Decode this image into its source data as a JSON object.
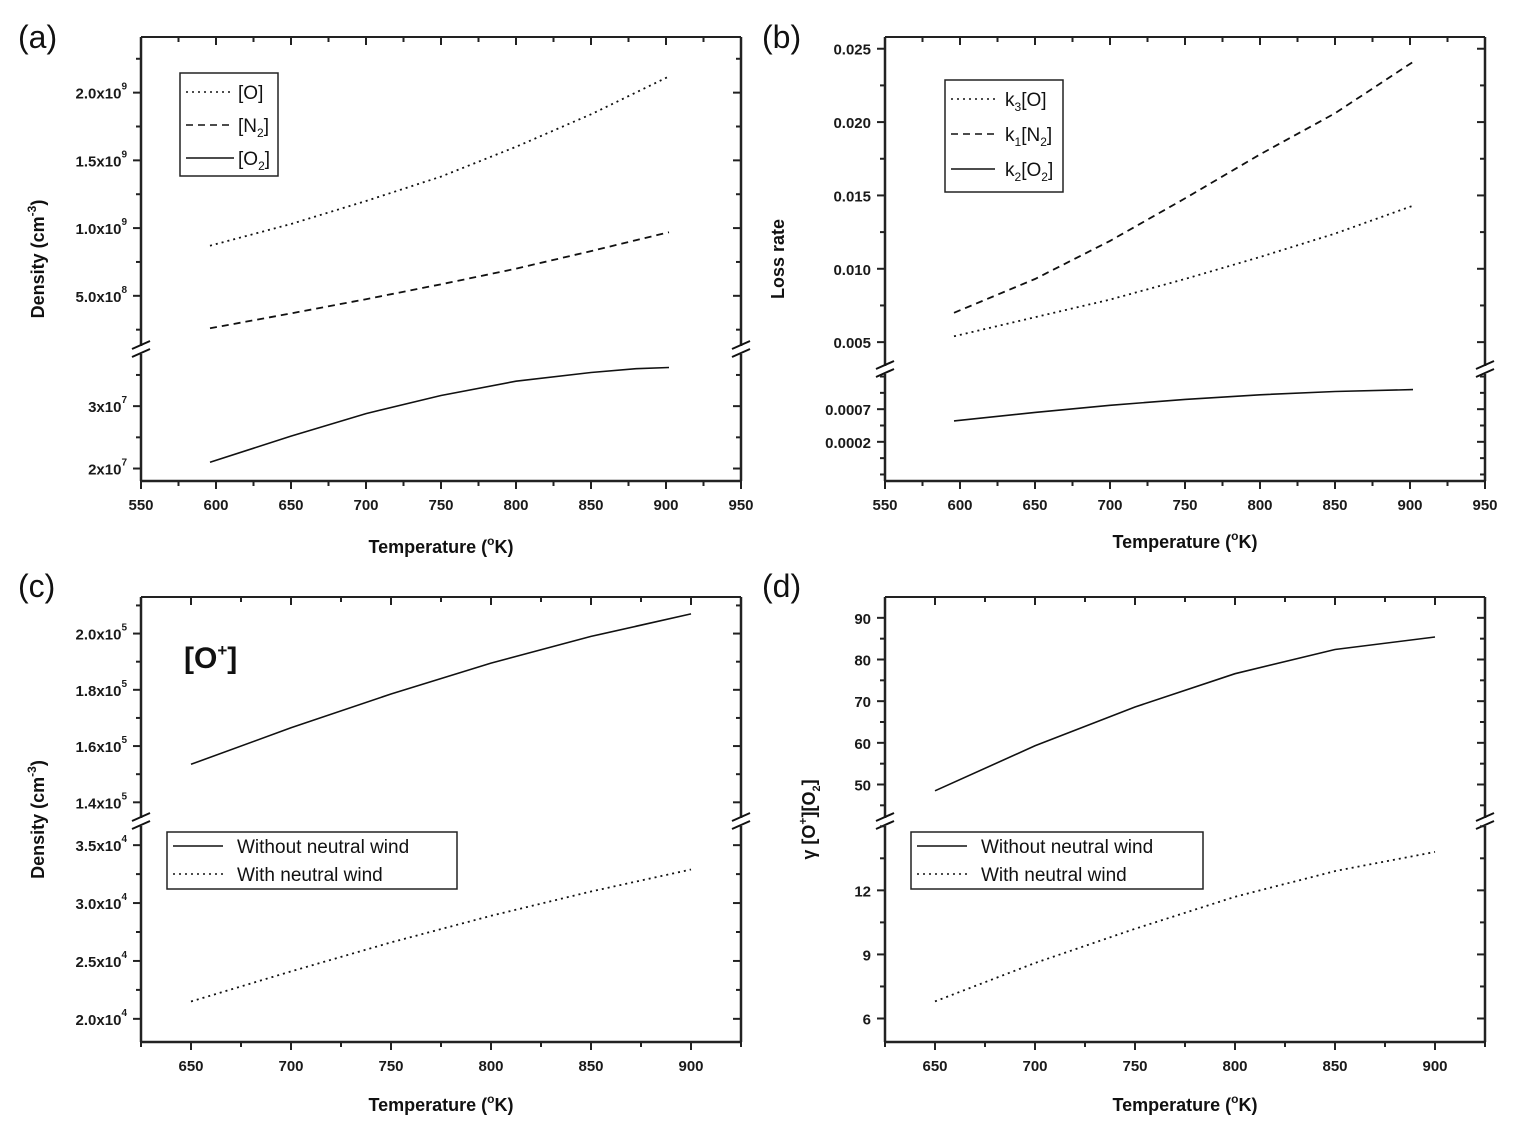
{
  "chart_data": [
    {
      "panel": "(a)",
      "type": "line",
      "xlabel": "Temperature (°K)",
      "ylabel": "Density (cm-3)",
      "ylabel_main": "Density (cm",
      "ylabel_sup": "-3",
      "ylabel_close": ")",
      "xlim": [
        550,
        950
      ],
      "xticks": [
        550,
        600,
        650,
        700,
        750,
        800,
        850,
        900,
        950
      ],
      "y_axis_break": true,
      "upper_segment": {
        "ylim": [
          100000000.0,
          2300000000.0
        ],
        "ticks": [
          {
            "value": 2000000000.0,
            "mant": "2.0x10",
            "exp": "9"
          },
          {
            "value": 1500000000.0,
            "mant": "1.5x10",
            "exp": "9"
          },
          {
            "value": 1000000000.0,
            "mant": "1.0x10",
            "exp": "9"
          },
          {
            "value": 500000000.0,
            "mant": "5.0x10",
            "exp": "8"
          }
        ]
      },
      "lower_segment": {
        "ylim": [
          18000000.0,
          39000000.0
        ],
        "ticks": [
          {
            "value": 30000000.0,
            "mant": "3x10",
            "exp": "7"
          },
          {
            "value": 20000000.0,
            "mant": "2x10",
            "exp": "7"
          }
        ]
      },
      "legend": {
        "placement": "top-left"
      },
      "series": [
        {
          "name": "[O]",
          "label_main": "[O",
          "label_sub": "",
          "label_close": "]",
          "style": "dotted",
          "segment": "upper",
          "x": [
            596,
            650,
            700,
            750,
            800,
            850,
            902
          ],
          "y": [
            870000000.0,
            1030000000.0,
            1200000000.0,
            1380000000.0,
            1600000000.0,
            1840000000.0,
            2120000000.0
          ]
        },
        {
          "name": "[N2]",
          "label_main": "[N",
          "label_sub": "2",
          "label_close": "]",
          "style": "dashed",
          "segment": "upper",
          "x": [
            596,
            650,
            700,
            750,
            800,
            850,
            902
          ],
          "y": [
            260000000.0,
            370000000.0,
            475000000.0,
            585000000.0,
            700000000.0,
            830000000.0,
            970000000.0
          ]
        },
        {
          "name": "[O2]",
          "label_main": "[O",
          "label_sub": "2",
          "label_close": "]",
          "style": "solid",
          "segment": "lower",
          "x": [
            596,
            650,
            700,
            750,
            800,
            850,
            880,
            902
          ],
          "y": [
            21000000.0,
            25200000.0,
            28800000.0,
            31700000.0,
            34000000.0,
            35400000.0,
            36000000.0,
            36200000.0
          ]
        }
      ]
    },
    {
      "panel": "(b)",
      "type": "line",
      "xlabel": "Temperature (°K)",
      "ylabel": "Loss rate",
      "ylabel_main": "Loss rate",
      "ylabel_sup": "",
      "ylabel_close": "",
      "xlim": [
        550,
        950
      ],
      "xticks": [
        550,
        600,
        650,
        700,
        750,
        800,
        850,
        900,
        950
      ],
      "y_axis_break": true,
      "upper_segment": {
        "ylim": [
          0.0031,
          0.0258
        ],
        "ticks": [
          {
            "value": 0.025,
            "mant": "0.025",
            "exp": ""
          },
          {
            "value": 0.02,
            "mant": "0.020",
            "exp": ""
          },
          {
            "value": 0.015,
            "mant": "0.015",
            "exp": ""
          },
          {
            "value": 0.01,
            "mant": "0.010",
            "exp": ""
          },
          {
            "value": 0.005,
            "mant": "0.005",
            "exp": ""
          }
        ]
      },
      "lower_segment": {
        "ylim": [
          -0.0004,
          0.0013
        ],
        "ticks": [
          {
            "value": 0.0007,
            "mant": "0.0007",
            "exp": ""
          },
          {
            "value": 0.0002,
            "mant": "0.0002",
            "exp": ""
          }
        ]
      },
      "legend": {
        "placement": "top-left"
      },
      "series": [
        {
          "name": "k3[O]",
          "label_main": "k",
          "label_k_sub": "3",
          "label_rest": "[O",
          "label_sub": "",
          "label_close": "]",
          "style": "dotted",
          "segment": "upper",
          "x": [
            596,
            650,
            700,
            750,
            800,
            850,
            902
          ],
          "y": [
            0.0054,
            0.0067,
            0.0079,
            0.0093,
            0.0108,
            0.0124,
            0.0143
          ]
        },
        {
          "name": "k1[N2]",
          "label_main": "k",
          "label_k_sub": "1",
          "label_rest": "[N",
          "label_sub": "2",
          "label_close": "]",
          "style": "dashed",
          "segment": "upper",
          "x": [
            596,
            650,
            700,
            750,
            800,
            850,
            902
          ],
          "y": [
            0.007,
            0.0093,
            0.0119,
            0.0148,
            0.0178,
            0.0206,
            0.0241
          ]
        },
        {
          "name": "k2[O2]",
          "label_main": "k",
          "label_k_sub": "2",
          "label_rest": "[O",
          "label_sub": "2",
          "label_close": "]",
          "style": "solid",
          "segment": "lower",
          "x": [
            596,
            650,
            700,
            750,
            800,
            850,
            902
          ],
          "y": [
            0.00052,
            0.00065,
            0.00076,
            0.00085,
            0.00092,
            0.00097,
            0.001
          ]
        }
      ]
    },
    {
      "panel": "(c)",
      "type": "line",
      "xlabel": "Temperature (°K)",
      "ylabel": "Density (cm-3)",
      "ylabel_main": "Density (cm",
      "ylabel_sup": "-3",
      "ylabel_close": ")",
      "annotation": {
        "main": "[O",
        "sup": "+",
        "close": "]"
      },
      "xlim": [
        625,
        925
      ],
      "xticks": [
        650,
        700,
        750,
        800,
        850,
        900
      ],
      "y_axis_break": true,
      "upper_segment": {
        "ylim": [
          133000.0,
          213000.0
        ],
        "ticks": [
          {
            "value": 200000.0,
            "mant": "2.0x10",
            "exp": "5"
          },
          {
            "value": 180000.0,
            "mant": "1.8x10",
            "exp": "5"
          },
          {
            "value": 160000.0,
            "mant": "1.6x10",
            "exp": "5"
          },
          {
            "value": 140000.0,
            "mant": "1.4x10",
            "exp": "5"
          }
        ]
      },
      "lower_segment": {
        "ylim": [
          18000.0,
          37000.0
        ],
        "ticks": [
          {
            "value": 35000.0,
            "mant": "3.5x10",
            "exp": "4"
          },
          {
            "value": 30000.0,
            "mant": "3.0x10",
            "exp": "4"
          },
          {
            "value": 25000.0,
            "mant": "2.5x10",
            "exp": "4"
          },
          {
            "value": 20000.0,
            "mant": "2.0x10",
            "exp": "4"
          }
        ]
      },
      "legend": {
        "placement": "center-left"
      },
      "series": [
        {
          "name": "Without neutral wind",
          "style": "solid",
          "segment": "upper",
          "x": [
            650,
            700,
            750,
            800,
            850,
            900
          ],
          "y": [
            153500.0,
            166500.0,
            178500.0,
            189500.0,
            199000.0,
            207000.0
          ]
        },
        {
          "name": "With neutral wind",
          "style": "dotted",
          "segment": "lower",
          "x": [
            650,
            700,
            750,
            800,
            850,
            900
          ],
          "y": [
            21500.0,
            24100.0,
            26600.0,
            28900.0,
            31000.0,
            32900.0
          ]
        }
      ]
    },
    {
      "panel": "(d)",
      "type": "line",
      "xlabel": "Temperature (°K)",
      "ylabel": "γ [O+][O2]",
      "ylabel_main": "γ [O",
      "ylabel_sup": "+",
      "ylabel_close": "][O",
      "ylabel_sub2": "2",
      "ylabel_end": "]",
      "xlim": [
        625,
        925
      ],
      "xticks": [
        650,
        700,
        750,
        800,
        850,
        900
      ],
      "y_axis_break": true,
      "upper_segment": {
        "ylim": [
          41,
          95
        ],
        "ticks": [
          {
            "value": 90,
            "mant": "90",
            "exp": ""
          },
          {
            "value": 80,
            "mant": "80",
            "exp": ""
          },
          {
            "value": 70,
            "mant": "70",
            "exp": ""
          },
          {
            "value": 60,
            "mant": "60",
            "exp": ""
          },
          {
            "value": 50,
            "mant": "50",
            "exp": ""
          }
        ]
      },
      "lower_segment": {
        "ylim": [
          4.9,
          15.2
        ],
        "ticks": [
          {
            "value": 12,
            "mant": "12",
            "exp": ""
          },
          {
            "value": 9,
            "mant": "9",
            "exp": ""
          },
          {
            "value": 6,
            "mant": "6",
            "exp": ""
          }
        ]
      },
      "legend": {
        "placement": "center-left"
      },
      "series": [
        {
          "name": "Without neutral wind",
          "style": "solid",
          "segment": "upper",
          "x": [
            650,
            700,
            750,
            800,
            850,
            900
          ],
          "y": [
            48.5,
            59.3,
            68.6,
            76.6,
            82.4,
            85.4
          ]
        },
        {
          "name": "With neutral wind",
          "style": "dotted",
          "segment": "lower",
          "x": [
            650,
            700,
            750,
            800,
            850,
            900
          ],
          "y": [
            6.8,
            8.6,
            10.2,
            11.7,
            12.9,
            13.8
          ]
        }
      ]
    }
  ]
}
